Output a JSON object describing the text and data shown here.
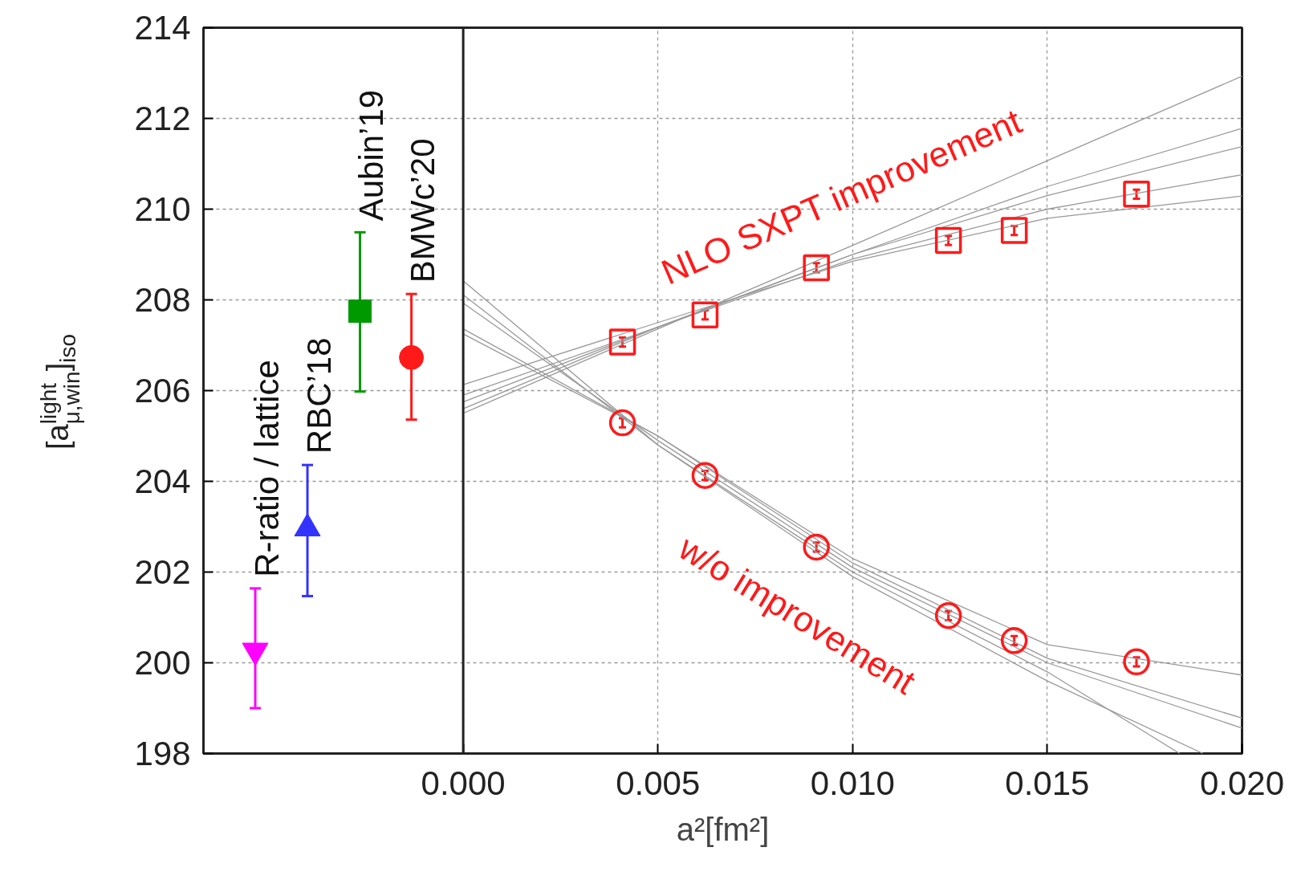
{
  "chart_data": {
    "type": "scatter",
    "xlabel": "a²[fm²]",
    "ylabel": "[a$^{light}$$_{μ,win}$]$_{iso}$",
    "xlim": [
      -0.00667,
      0.02
    ],
    "ylim": [
      198,
      214
    ],
    "xticks": [
      {
        "value": 0,
        "label": "0.000"
      },
      {
        "value": 0.005,
        "label": "0.005"
      },
      {
        "value": 0.01,
        "label": "0.010"
      },
      {
        "value": 0.015,
        "label": "0.015"
      },
      {
        "value": 0.02,
        "label": "0.020"
      }
    ],
    "yticks": [
      198,
      200,
      202,
      204,
      206,
      208,
      210,
      212,
      214
    ],
    "grid": true,
    "legend": false,
    "ref_lines": [
      {
        "axis": "x",
        "value": 0,
        "label": null,
        "color": "#222222",
        "line_style": "solid"
      }
    ],
    "annotations": [
      "NLO SXPT improvement",
      "w/o improvement"
    ],
    "series": [
      {
        "name": "R-ratio / lattice",
        "type": "scatter",
        "color": "#ff00ff",
        "x": [
          -0.00534
        ],
        "values": [
          200.27
        ],
        "errors": [
          [
            199.0,
            201.64
          ]
        ]
      },
      {
        "name": "RBC’18",
        "type": "scatter",
        "marker": "triangle",
        "color": "#3333ff",
        "x": [
          -0.004
        ],
        "values": [
          202.96
        ],
        "errors": [
          [
            201.47,
            204.36
          ]
        ]
      },
      {
        "name": "Aubin’19",
        "type": "scatter",
        "marker": "square",
        "color": "#009900",
        "x": [
          -0.00265
        ],
        "values": [
          207.75
        ],
        "errors": [
          [
            205.98,
            209.49
          ]
        ]
      },
      {
        "name": "BMWc’20",
        "type": "scatter",
        "marker": "circle",
        "color": "#ff1a1a",
        "x": [
          -0.00133
        ],
        "values": [
          206.73
        ],
        "errors": [
          [
            205.36,
            208.13
          ]
        ]
      },
      {
        "type": "line",
        "color": "#999999",
        "x": [
          0,
          0.005,
          0.01,
          0.015,
          0.02
        ],
        "values": [
          205.5,
          207.36,
          209.2,
          211.07,
          212.93
        ]
      },
      {
        "type": "line",
        "color": "#999999",
        "x": [
          0,
          0.005,
          0.01,
          0.015,
          0.02
        ],
        "values": [
          205.6,
          207.4,
          209.0,
          210.5,
          211.78
        ]
      },
      {
        "type": "line",
        "color": "#999999",
        "x": [
          0,
          0.005,
          0.01,
          0.015,
          0.02
        ],
        "values": [
          205.75,
          207.4,
          209.0,
          210.3,
          211.38
        ]
      },
      {
        "type": "line",
        "color": "#999999",
        "x": [
          0,
          0.005,
          0.01,
          0.015,
          0.02
        ],
        "values": [
          205.9,
          207.4,
          208.9,
          210.0,
          210.76
        ]
      },
      {
        "type": "line",
        "color": "#999999",
        "x": [
          0,
          0.005,
          0.01,
          0.015,
          0.02
        ],
        "values": [
          206.13,
          207.5,
          208.85,
          209.8,
          210.29
        ]
      },
      {
        "type": "line",
        "color": "#999999",
        "x": [
          0,
          0.005,
          0.01,
          0.015,
          0.02
        ],
        "values": [
          207.25,
          205.0,
          202.3,
          200.4,
          199.73
        ]
      },
      {
        "type": "line",
        "color": "#999999",
        "x": [
          0,
          0.005,
          0.01,
          0.015,
          0.02
        ],
        "values": [
          207.36,
          205.0,
          202.2,
          200.1,
          198.78
        ]
      },
      {
        "type": "line",
        "color": "#999999",
        "x": [
          0,
          0.005,
          0.01,
          0.015,
          0.02
        ],
        "values": [
          207.93,
          204.9,
          202.1,
          200.0,
          198.56
        ]
      },
      {
        "type": "line",
        "color": "#999999",
        "x": [
          0,
          0.005,
          0.01,
          0.015,
          0.0184
        ],
        "values": [
          208.11,
          204.8,
          202.0,
          199.8,
          198.0
        ]
      },
      {
        "type": "line",
        "color": "#999999",
        "x": [
          0,
          0.005,
          0.01,
          0.015,
          0.019
        ],
        "values": [
          208.42,
          204.8,
          201.9,
          199.6,
          198.0
        ]
      },
      {
        "type": "scatter",
        "marker": "square_hollow",
        "color": "#ff1a1a",
        "x": [
          0.00409,
          0.00621,
          0.00907,
          0.01246,
          0.01415,
          0.01729
        ],
        "values": [
          207.07,
          207.67,
          208.71,
          209.31,
          209.53,
          210.33
        ],
        "errors": [
          0.1,
          0.1,
          0.1,
          0.1,
          0.1,
          0.1
        ]
      },
      {
        "type": "scatter",
        "marker": "circle_hollow",
        "color": "#ff1a1a",
        "x": [
          0.00409,
          0.00621,
          0.00907,
          0.01246,
          0.01415,
          0.01729
        ],
        "values": [
          205.29,
          204.13,
          202.55,
          201.04,
          200.49,
          200.02
        ],
        "errors": [
          0.1,
          0.1,
          0.1,
          0.1,
          0.1,
          0.1
        ]
      }
    ]
  }
}
